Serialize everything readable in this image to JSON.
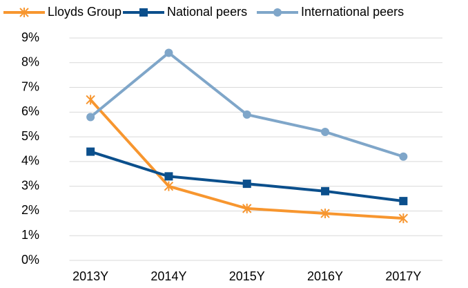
{
  "chart_data": {
    "type": "line",
    "categories": [
      "2013Y",
      "2014Y",
      "2015Y",
      "2016Y",
      "2017Y"
    ],
    "series": [
      {
        "name": "Lloyds Group",
        "color": "#f7962f",
        "marker": "asterisk",
        "values": [
          6.5,
          3.0,
          2.1,
          1.9,
          1.7
        ]
      },
      {
        "name": "National peers",
        "color": "#0b4f8c",
        "marker": "square",
        "values": [
          4.4,
          3.4,
          3.1,
          2.8,
          2.4
        ]
      },
      {
        "name": "International peers",
        "color": "#7fa6c9",
        "marker": "circle",
        "values": [
          5.8,
          8.4,
          5.9,
          5.2,
          4.2
        ]
      }
    ],
    "ylim": [
      0,
      9
    ],
    "yticks": [
      {
        "value": 0,
        "label": "0%"
      },
      {
        "value": 1,
        "label": "1%"
      },
      {
        "value": 2,
        "label": "2%"
      },
      {
        "value": 3,
        "label": "3%"
      },
      {
        "value": 4,
        "label": "4%"
      },
      {
        "value": 5,
        "label": "5%"
      },
      {
        "value": 6,
        "label": "6%"
      },
      {
        "value": 7,
        "label": "7%"
      },
      {
        "value": 8,
        "label": "8%"
      },
      {
        "value": 9,
        "label": "9%"
      }
    ],
    "grid": true,
    "legend": "top"
  }
}
